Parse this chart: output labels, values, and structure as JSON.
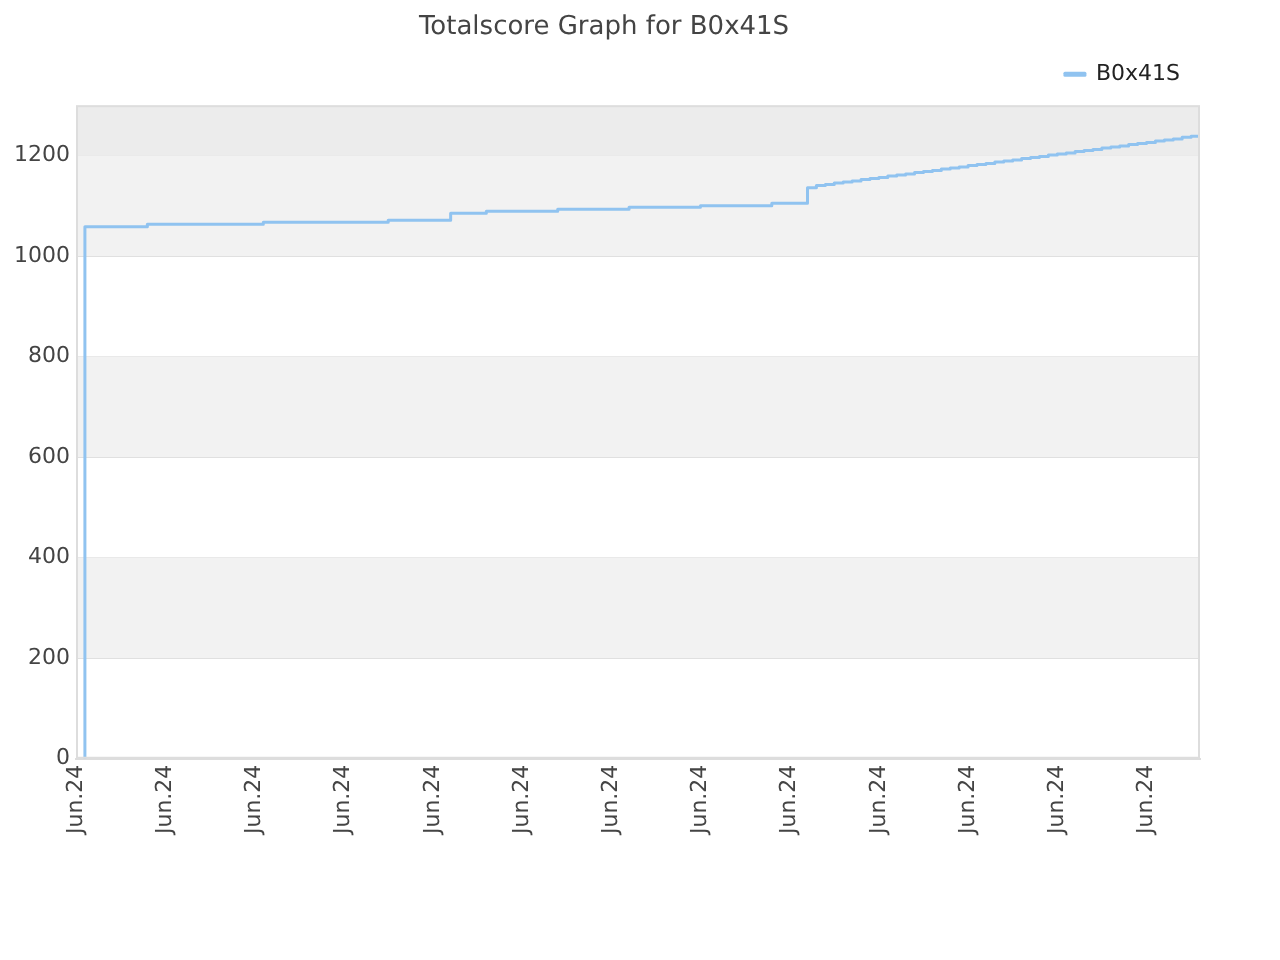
{
  "chart_data": {
    "type": "step",
    "title": "Totalscore Graph for B0x41S",
    "categories": [
      "Jun.24",
      null,
      null,
      null,
      null,
      null,
      null,
      null,
      null,
      null,
      "Jun.24",
      null,
      null,
      null,
      null,
      null,
      null,
      null,
      null,
      null,
      "Jun.24",
      null,
      null,
      null,
      null,
      null,
      null,
      null,
      null,
      null,
      "Jun.24",
      null,
      null,
      null,
      null,
      null,
      null,
      null,
      null,
      null,
      "Jun.24",
      null,
      null,
      null,
      null,
      null,
      null,
      null,
      null,
      null,
      "Jun.24",
      null,
      null,
      null,
      null,
      null,
      null,
      null,
      null,
      null,
      "Jun.24",
      null,
      null,
      null,
      null,
      null,
      null,
      null,
      null,
      null,
      "Jun.24",
      null,
      null,
      null,
      null,
      null,
      null,
      null,
      null,
      null,
      "Jun.24",
      null,
      null,
      null,
      null,
      null,
      null,
      null,
      null,
      null,
      "Jun.24",
      null,
      null,
      null,
      null,
      null,
      null,
      null,
      null,
      null,
      "Jun.24",
      null,
      null,
      null,
      null,
      null,
      null,
      null,
      null,
      null,
      "Jun.24",
      null,
      null,
      null,
      null,
      null,
      null,
      null,
      null,
      null,
      "Jun.24",
      null,
      null,
      null,
      null,
      null,
      null
    ],
    "ylim": [
      0,
      1300
    ],
    "yticks": [
      0,
      200,
      400,
      600,
      800,
      1000,
      1200
    ],
    "grid": "y",
    "legend": "top right",
    "marker": "none",
    "bands": [
      {
        "axis": "y",
        "from": 200,
        "to": 400,
        "color": "#f2f2f2"
      },
      {
        "axis": "y",
        "from": 600,
        "to": 800,
        "color": "#f2f2f2"
      },
      {
        "axis": "y",
        "from": 1000,
        "to": 1200,
        "color": "#f2f2f2"
      },
      {
        "axis": "y",
        "from": 1200,
        "to": 1300,
        "color": "#ececec"
      }
    ],
    "series": [
      {
        "name": "B0x41S",
        "color": "#90c3f0",
        "values": [
          null,
          0,
          1058,
          1058,
          1058,
          1058,
          1058,
          1058,
          1058,
          1063,
          1063,
          1063,
          1063,
          1063,
          1063,
          1063,
          1063,
          1063,
          1063,
          1063,
          1063,
          1063,
          1067,
          1067,
          1067,
          1067,
          1067,
          1067,
          1067,
          1067,
          1067,
          1067,
          1067,
          1067,
          1067,
          1067,
          1071,
          1071,
          1071,
          1071,
          1071,
          1071,
          1071,
          1085,
          1085,
          1085,
          1085,
          1089,
          1089,
          1089,
          1089,
          1089,
          1089,
          1089,
          1089,
          1093,
          1093,
          1093,
          1093,
          1093,
          1093,
          1093,
          1093,
          1097,
          1097,
          1097,
          1097,
          1097,
          1097,
          1097,
          1097,
          1100,
          1100,
          1100,
          1100,
          1100,
          1100,
          1100,
          1100,
          1105,
          1105,
          1105,
          1105,
          1136,
          1140,
          1142,
          1145,
          1147,
          1149,
          1152,
          1154,
          1156,
          1159,
          1161,
          1163,
          1166,
          1168,
          1170,
          1173,
          1175,
          1177,
          1180,
          1182,
          1184,
          1187,
          1189,
          1191,
          1194,
          1196,
          1198,
          1201,
          1203,
          1205,
          1208,
          1210,
          1212,
          1215,
          1217,
          1219,
          1222,
          1224,
          1226,
          1229,
          1231,
          1233,
          1236,
          1238
        ]
      }
    ]
  }
}
